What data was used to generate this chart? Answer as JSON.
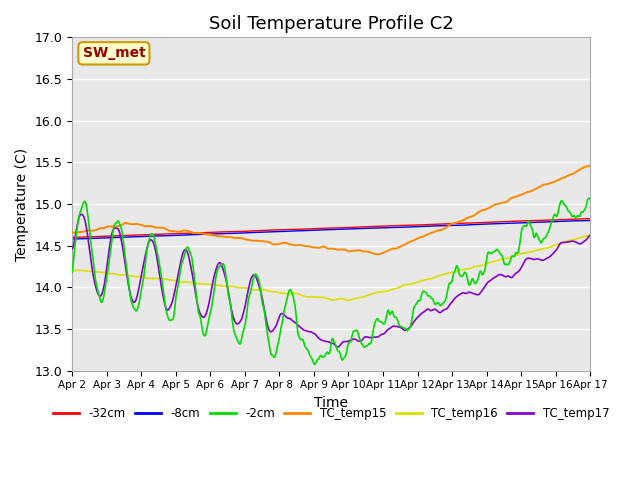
{
  "title": "Soil Temperature Profile C2",
  "xlabel": "Time",
  "ylabel": "Temperature (C)",
  "ylim": [
    13.0,
    17.0
  ],
  "yticks": [
    13.0,
    13.5,
    14.0,
    14.5,
    15.0,
    15.5,
    16.0,
    16.5,
    17.0
  ],
  "xtick_labels": [
    "Apr 2",
    "Apr 3",
    "Apr 4",
    "Apr 5",
    "Apr 6",
    "Apr 7",
    "Apr 8",
    "Apr 9",
    "Apr 10",
    "Apr 11",
    "Apr 12",
    "Apr 13",
    "Apr 14",
    "Apr 15",
    "Apr 16",
    "Apr 17"
  ],
  "annotation_text": "SW_met",
  "annotation_bg": "#ffffcc",
  "annotation_border": "#cc9900",
  "annotation_text_color": "#990000",
  "series_colors": {
    "-32cm": "#ff0000",
    "-8cm": "#0000ff",
    "-2cm": "#00dd00",
    "TC_temp15": "#ff8800",
    "TC_temp16": "#dddd00",
    "TC_temp17": "#8800cc"
  },
  "bg_color": "#e8e8e8",
  "grid_color": "#ffffff",
  "title_fontsize": 13
}
